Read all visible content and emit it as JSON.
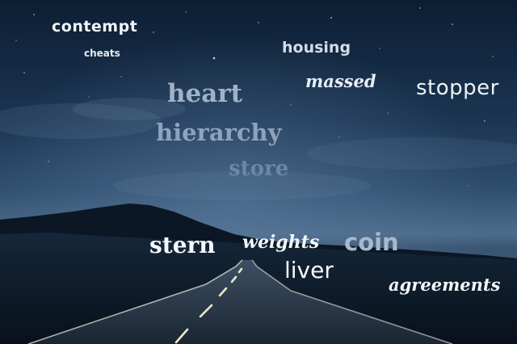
{
  "scene": {
    "description_colors": {
      "sky_top": "#0e2238",
      "sky_mid": "#23405e",
      "sky_horizon": "#4f6f8f",
      "mountain": "#0a1522",
      "ground": "#0d1926",
      "road": "#202d3b",
      "road_line": "#e8e4d0"
    }
  },
  "words": {
    "contempt": "contempt",
    "cheats": "cheats",
    "housing": "housing",
    "massed": "massed",
    "stopper": "stopper",
    "heart": "heart",
    "hierarchy": "hierarchy",
    "store": "store",
    "stern": "stern",
    "weights": "weights",
    "coin": "coin",
    "liver": "liver",
    "agreements": "agreements"
  }
}
